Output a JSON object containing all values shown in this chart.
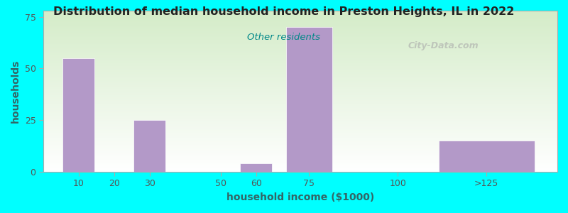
{
  "title": "Distribution of median household income in Preston Heights, IL in 2022",
  "subtitle": "Other residents",
  "xlabel": "household income ($1000)",
  "ylabel": "households",
  "background_color": "#00FFFF",
  "bar_color": "#b399c8",
  "title_color": "#222222",
  "subtitle_color": "#008888",
  "axis_label_color": "#336666",
  "tick_label_color": "#555555",
  "categories": [
    "10",
    "20",
    "30",
    "50",
    "60",
    "75",
    "100",
    ">125"
  ],
  "values": [
    55,
    0,
    25,
    0,
    4,
    70,
    0,
    15
  ],
  "bar_positions": [
    10,
    20,
    30,
    50,
    60,
    75,
    100,
    125
  ],
  "bar_widths": [
    9,
    9,
    9,
    9,
    9,
    13,
    9,
    27
  ],
  "xtick_positions": [
    10,
    20,
    30,
    50,
    60,
    75,
    100,
    125
  ],
  "xlim": [
    0,
    145
  ],
  "ylim": [
    0,
    78
  ],
  "yticks": [
    0,
    25,
    50,
    75
  ],
  "watermark": "City-Data.com"
}
